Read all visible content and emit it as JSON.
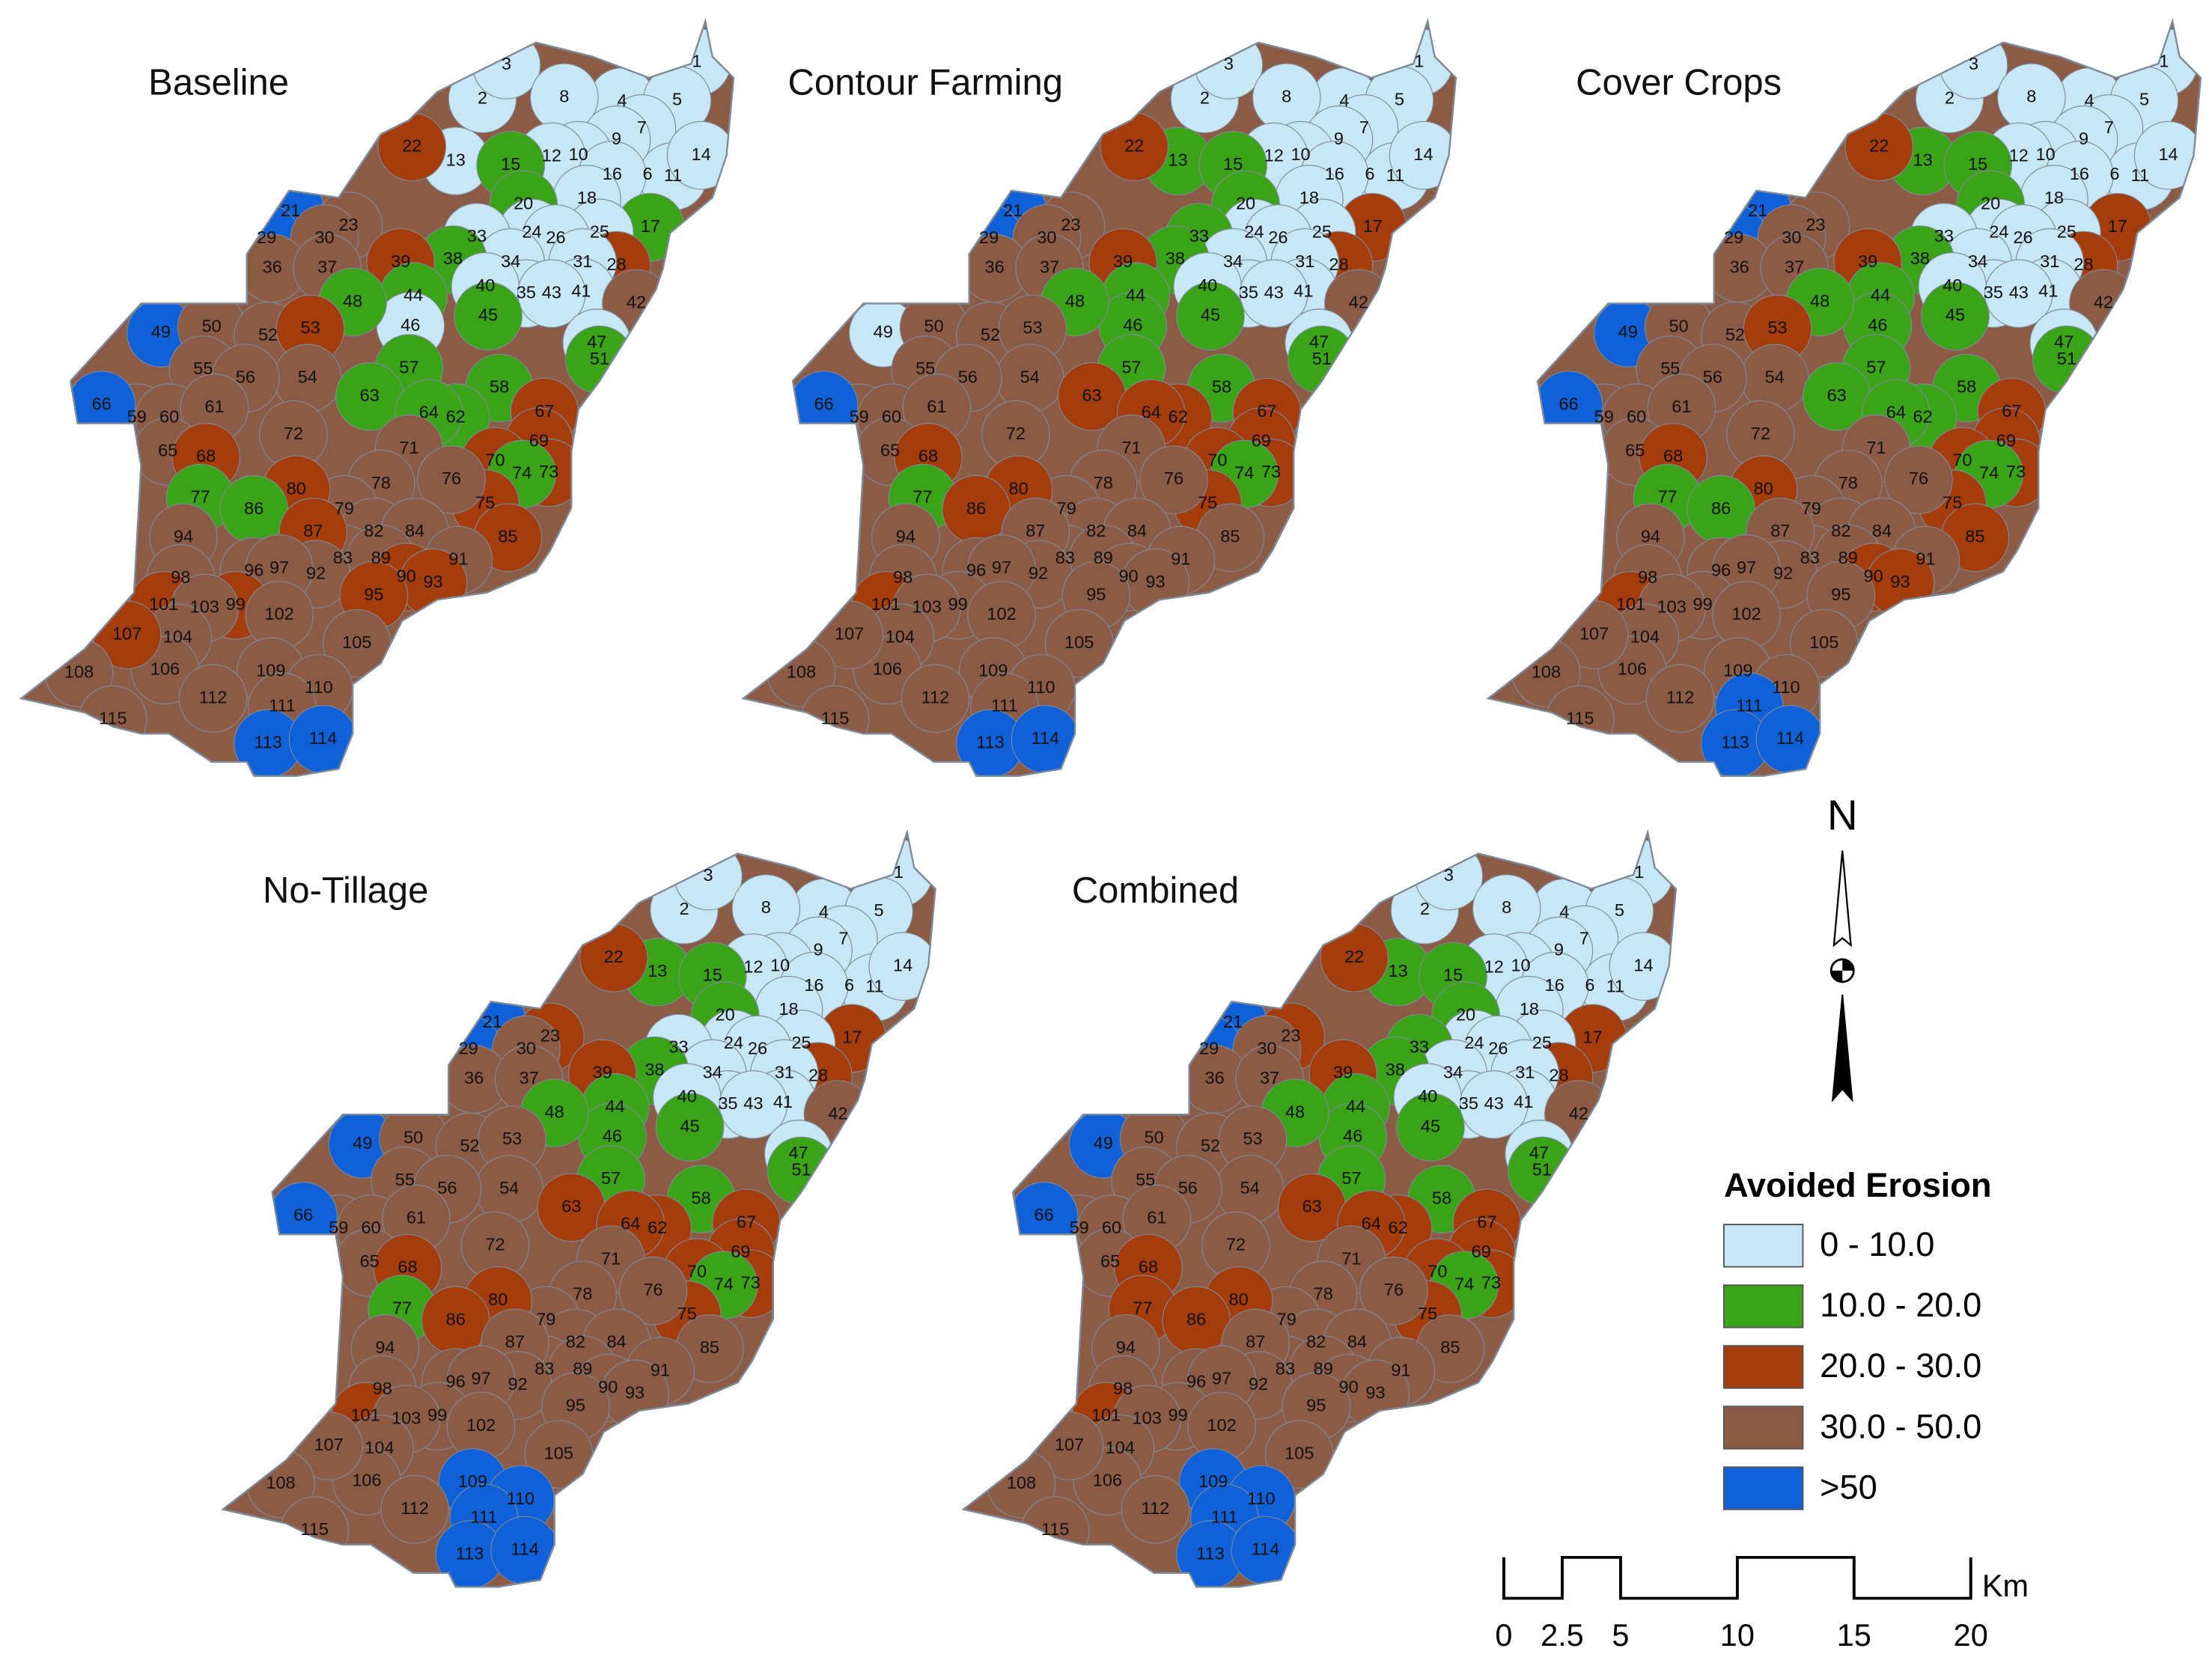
{
  "panels": [
    {
      "title": "Baseline",
      "classes": [
        0,
        0,
        0,
        0,
        0,
        0,
        0,
        0,
        0,
        0,
        0,
        0,
        0,
        0,
        1,
        0,
        1,
        0,
        1,
        4,
        2,
        3,
        0,
        0,
        0,
        2,
        4,
        3,
        0,
        0,
        0,
        0,
        3,
        3,
        1,
        2,
        0,
        0,
        3,
        0,
        1,
        1,
        0,
        0,
        1,
        4,
        3,
        1,
        3,
        2,
        3,
        3,
        3,
        1,
        1,
        3,
        3,
        3,
        1,
        1,
        1,
        3,
        4,
        2,
        2,
        2,
        2,
        3,
        3,
        2,
        1,
        2,
        3,
        1,
        3,
        3,
        2,
        3,
        3,
        3,
        2,
        1,
        2,
        3,
        2,
        3,
        3,
        2,
        3,
        2,
        3,
        3,
        3,
        2,
        2,
        3,
        3,
        3,
        3,
        3,
        2,
        3,
        3,
        3,
        3,
        3,
        4,
        4,
        3
      ]
    },
    {
      "title": "Contour Farming",
      "classes": [
        0,
        0,
        0,
        0,
        0,
        0,
        0,
        0,
        0,
        0,
        0,
        0,
        1,
        0,
        1,
        0,
        2,
        0,
        1,
        4,
        2,
        3,
        0,
        0,
        0,
        2,
        4,
        3,
        0,
        1,
        0,
        0,
        3,
        3,
        1,
        2,
        0,
        0,
        3,
        0,
        1,
        1,
        1,
        0,
        1,
        0,
        3,
        1,
        3,
        3,
        3,
        3,
        3,
        1,
        1,
        3,
        3,
        3,
        2,
        2,
        2,
        3,
        4,
        2,
        2,
        2,
        2,
        3,
        3,
        2,
        1,
        2,
        3,
        1,
        3,
        3,
        2,
        3,
        3,
        3,
        3,
        2,
        3,
        3,
        3,
        3,
        3,
        3,
        3,
        3,
        3,
        3,
        3,
        3,
        2,
        3,
        3,
        3,
        3,
        3,
        3,
        3,
        3,
        3,
        3,
        3,
        4,
        4,
        3
      ]
    },
    {
      "title": "Cover Crops",
      "classes": [
        0,
        0,
        0,
        0,
        0,
        0,
        0,
        0,
        0,
        0,
        0,
        0,
        1,
        0,
        1,
        0,
        2,
        0,
        1,
        4,
        2,
        3,
        0,
        0,
        0,
        2,
        4,
        3,
        0,
        0,
        0,
        0,
        3,
        3,
        1,
        2,
        0,
        0,
        3,
        0,
        1,
        1,
        1,
        0,
        1,
        4,
        3,
        1,
        3,
        2,
        3,
        3,
        3,
        1,
        1,
        3,
        3,
        3,
        1,
        1,
        1,
        3,
        4,
        2,
        2,
        2,
        2,
        3,
        3,
        2,
        1,
        2,
        3,
        1,
        3,
        3,
        2,
        3,
        3,
        3,
        2,
        1,
        3,
        3,
        2,
        3,
        3,
        2,
        3,
        3,
        3,
        3,
        3,
        3,
        2,
        3,
        3,
        3,
        3,
        3,
        3,
        3,
        3,
        3,
        4,
        3,
        4,
        4,
        3
      ]
    },
    {
      "title": "No-Tillage",
      "classes": [
        0,
        0,
        0,
        0,
        0,
        0,
        0,
        0,
        0,
        0,
        0,
        0,
        1,
        0,
        1,
        0,
        2,
        0,
        1,
        4,
        2,
        2,
        0,
        0,
        0,
        2,
        4,
        3,
        0,
        0,
        0,
        0,
        3,
        3,
        1,
        2,
        0,
        0,
        3,
        0,
        1,
        1,
        1,
        0,
        1,
        4,
        3,
        1,
        3,
        3,
        3,
        3,
        3,
        1,
        1,
        3,
        3,
        3,
        2,
        2,
        2,
        3,
        4,
        2,
        2,
        2,
        2,
        3,
        3,
        2,
        1,
        2,
        3,
        1,
        3,
        3,
        2,
        3,
        3,
        3,
        3,
        2,
        3,
        3,
        3,
        3,
        3,
        3,
        3,
        3,
        3,
        3,
        3,
        3,
        2,
        3,
        3,
        3,
        3,
        3,
        3,
        3,
        4,
        4,
        4,
        3,
        4,
        4,
        3
      ]
    },
    {
      "title": "Combined",
      "classes": [
        0,
        0,
        0,
        0,
        0,
        0,
        0,
        0,
        0,
        0,
        0,
        0,
        1,
        0,
        1,
        0,
        2,
        0,
        1,
        4,
        2,
        2,
        0,
        0,
        0,
        2,
        4,
        3,
        0,
        1,
        0,
        0,
        3,
        3,
        1,
        2,
        0,
        0,
        3,
        0,
        1,
        1,
        1,
        0,
        1,
        4,
        3,
        1,
        3,
        3,
        3,
        3,
        3,
        1,
        1,
        3,
        3,
        3,
        2,
        2,
        2,
        3,
        4,
        2,
        2,
        2,
        2,
        3,
        3,
        2,
        1,
        2,
        3,
        2,
        3,
        3,
        2,
        3,
        3,
        3,
        3,
        2,
        3,
        3,
        3,
        3,
        3,
        3,
        3,
        3,
        3,
        3,
        3,
        3,
        2,
        3,
        3,
        3,
        3,
        3,
        3,
        3,
        4,
        4,
        4,
        3,
        4,
        4,
        3
      ]
    }
  ],
  "subbasins": [
    1,
    2,
    3,
    4,
    5,
    6,
    7,
    8,
    9,
    10,
    11,
    12,
    13,
    14,
    15,
    16,
    17,
    18,
    20,
    21,
    22,
    23,
    24,
    25,
    26,
    28,
    29,
    30,
    31,
    33,
    34,
    35,
    36,
    37,
    38,
    39,
    40,
    41,
    42,
    43,
    44,
    45,
    46,
    47,
    48,
    49,
    50,
    51,
    52,
    53,
    54,
    55,
    56,
    57,
    58,
    59,
    60,
    61,
    62,
    63,
    64,
    65,
    66,
    67,
    68,
    69,
    70,
    71,
    72,
    73,
    74,
    75,
    76,
    77,
    78,
    79,
    80,
    82,
    83,
    84,
    85,
    86,
    87,
    89,
    90,
    91,
    92,
    93,
    94,
    95,
    96,
    97,
    98,
    99,
    101,
    102,
    103,
    104,
    105,
    106,
    107,
    108,
    109,
    110,
    111,
    112,
    113,
    114,
    115
  ],
  "legend": {
    "title": "Avoided Erosion",
    "entries": [
      {
        "label": "0 - 10.0",
        "color": "#c8e7f6"
      },
      {
        "label": "10.0 - 20.0",
        "color": "#3ba318"
      },
      {
        "label": "20.0 - 30.0",
        "color": "#a53c0b"
      },
      {
        "label": "30.0 - 50.0",
        "color": "#8c5b45"
      },
      {
        "label": ">50",
        "color": "#1060d8"
      }
    ]
  },
  "north_arrow": {
    "label": "N"
  },
  "scale_bar": {
    "ticks": [
      0,
      2.5,
      5,
      10,
      15,
      20
    ],
    "unit": "Km"
  }
}
